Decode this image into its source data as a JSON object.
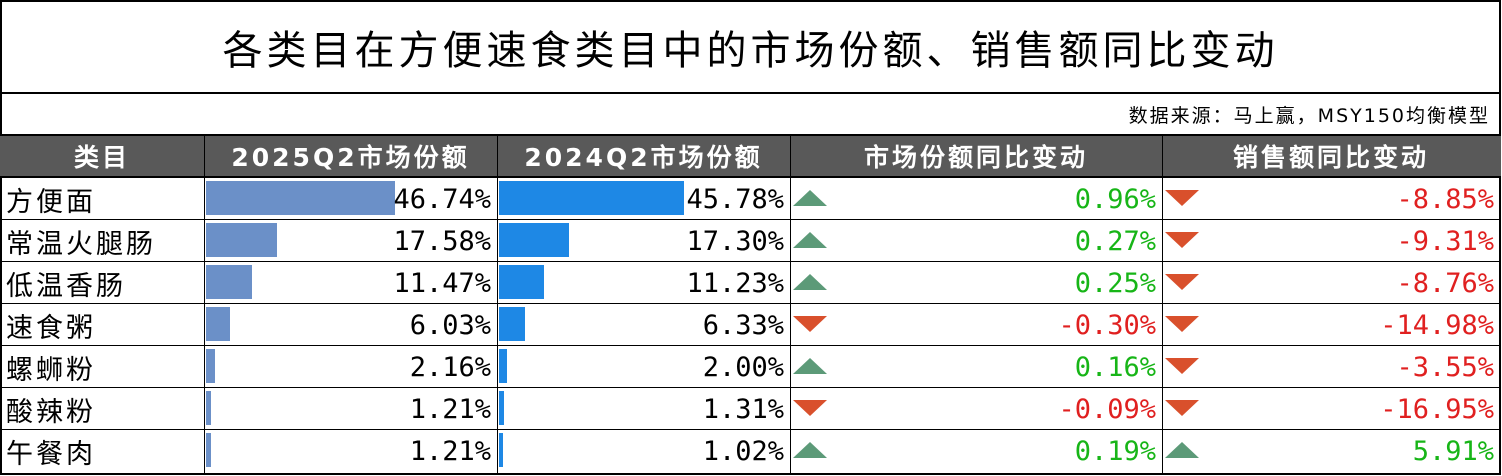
{
  "title": "各类目在方便速食类目中的市场份额、销售额同比变动",
  "source": "数据来源：马上赢，MSY150均衡模型",
  "headers": [
    "类目",
    "2025Q2市场份额",
    "2024Q2市场份额",
    "市场份额同比变动",
    "销售额同比变动"
  ],
  "colors": {
    "header_bg": "#595959",
    "bar_2025": "#6b90c8",
    "bar_2024": "#1e88e5",
    "positive": "#17b517",
    "negative": "#e02020",
    "up_arrow": "#5c9a78",
    "down_arrow": "#d9502c"
  },
  "chart_data": {
    "type": "table",
    "columns": [
      "类目",
      "2025Q2市场份额",
      "2024Q2市场份额",
      "市场份额同比变动",
      "销售额同比变动"
    ],
    "rows": [
      {
        "category": "方便面",
        "share_2025": 46.74,
        "share_2025_label": "46.74%",
        "share_2024": 45.78,
        "share_2024_label": "45.78%",
        "share_change": 0.96,
        "share_change_label": "0.96%",
        "sales_change": -8.85,
        "sales_change_label": "-8.85%"
      },
      {
        "category": "常温火腿肠",
        "share_2025": 17.58,
        "share_2025_label": "17.58%",
        "share_2024": 17.3,
        "share_2024_label": "17.30%",
        "share_change": 0.27,
        "share_change_label": "0.27%",
        "sales_change": -9.31,
        "sales_change_label": "-9.31%"
      },
      {
        "category": "低温香肠",
        "share_2025": 11.47,
        "share_2025_label": "11.47%",
        "share_2024": 11.23,
        "share_2024_label": "11.23%",
        "share_change": 0.25,
        "share_change_label": "0.25%",
        "sales_change": -8.76,
        "sales_change_label": "-8.76%"
      },
      {
        "category": "速食粥",
        "share_2025": 6.03,
        "share_2025_label": "6.03%",
        "share_2024": 6.33,
        "share_2024_label": "6.33%",
        "share_change": -0.3,
        "share_change_label": "-0.30%",
        "sales_change": -14.98,
        "sales_change_label": "-14.98%"
      },
      {
        "category": "螺蛳粉",
        "share_2025": 2.16,
        "share_2025_label": "2.16%",
        "share_2024": 2.0,
        "share_2024_label": "2.00%",
        "share_change": 0.16,
        "share_change_label": "0.16%",
        "sales_change": -3.55,
        "sales_change_label": "-3.55%"
      },
      {
        "category": "酸辣粉",
        "share_2025": 1.21,
        "share_2025_label": "1.21%",
        "share_2024": 1.31,
        "share_2024_label": "1.31%",
        "share_change": -0.09,
        "share_change_label": "-0.09%",
        "sales_change": -16.95,
        "sales_change_label": "-16.95%"
      },
      {
        "category": "午餐肉",
        "share_2025": 1.21,
        "share_2025_label": "1.21%",
        "share_2024": 1.02,
        "share_2024_label": "1.02%",
        "share_change": 0.19,
        "share_change_label": "0.19%",
        "sales_change": 5.91,
        "sales_change_label": "5.91%"
      }
    ]
  }
}
